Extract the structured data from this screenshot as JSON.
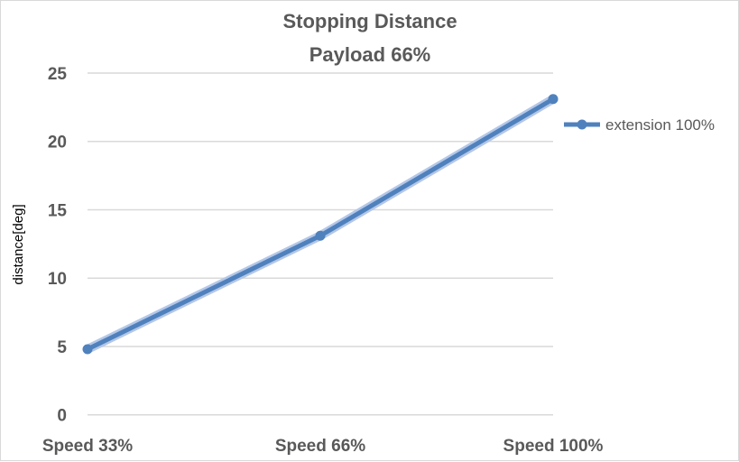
{
  "chart_data": {
    "type": "line",
    "title": [
      "Stopping Distance",
      "Payload 66%"
    ],
    "xlabel": "",
    "ylabel": "distance[deg]",
    "categories": [
      "Speed 33%",
      "Speed 66%",
      "Speed 100%"
    ],
    "ylim": [
      0,
      25
    ],
    "yticks": [
      0,
      5,
      10,
      15,
      20,
      25
    ],
    "grid": true,
    "legend_position": "right",
    "series": [
      {
        "name": "extension 100%",
        "values": [
          4.8,
          13.1,
          23.1
        ],
        "color": "#4f81bd",
        "marker": "circle"
      }
    ]
  }
}
